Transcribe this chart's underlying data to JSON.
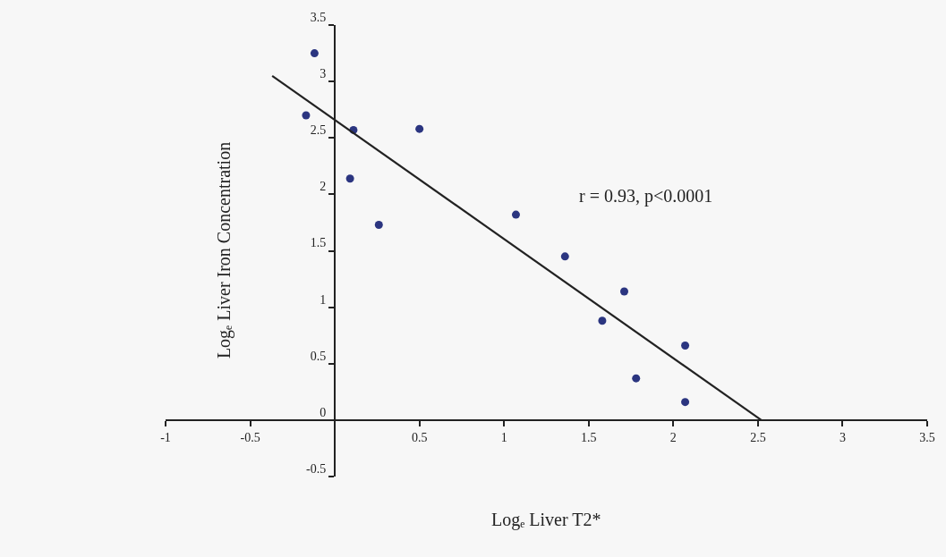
{
  "chart_data": {
    "type": "scatter",
    "xlabel": "Logₑ Liver T2*",
    "ylabel": "Logₑ Liver Iron Concentration",
    "series": [
      {
        "color": "#2b3580",
        "marker": "circle",
        "x": [
          -0.12,
          -0.17,
          0.11,
          0.5,
          0.09,
          0.26,
          1.07,
          1.36,
          1.71,
          1.58,
          2.07,
          1.78,
          2.07
        ],
        "values": [
          3.25,
          2.7,
          2.57,
          2.58,
          2.14,
          1.73,
          1.82,
          1.45,
          1.14,
          0.88,
          0.66,
          0.37,
          0.16
        ]
      },
      {
        "type": "line",
        "color": "#222222",
        "marker": "none",
        "line_style": "solid",
        "x": [
          -0.37,
          2.52
        ],
        "values": [
          3.05,
          0
        ]
      }
    ],
    "annotations": [
      "r = 0.93, p<0.0001"
    ],
    "xlim": [
      -1,
      3.5
    ],
    "xticks": [
      -1,
      -0.5,
      {
        "value": 0,
        "label": null
      },
      0.5,
      1,
      1.5,
      2,
      2.5,
      3,
      3.5
    ],
    "ylim": [
      -0.5,
      3.5
    ],
    "yticks": [
      -0.5,
      0,
      0.5,
      1,
      1.5,
      2,
      2.5,
      3,
      3.5
    ],
    "grid": false
  }
}
